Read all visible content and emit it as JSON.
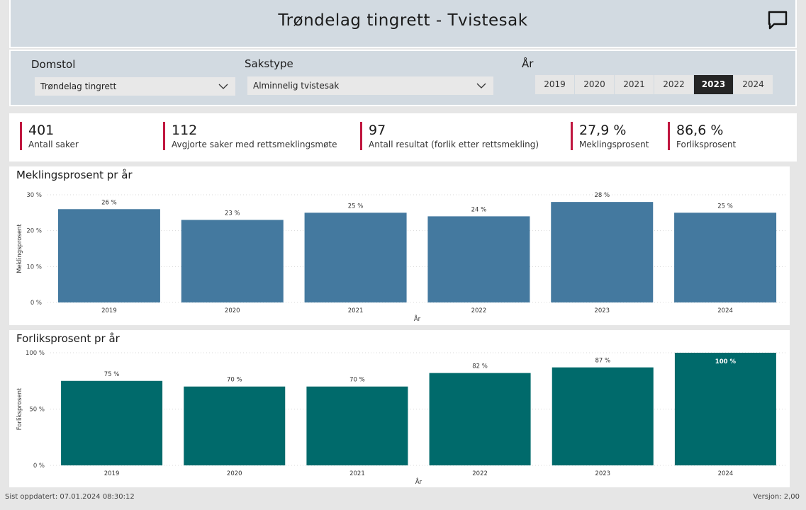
{
  "header": {
    "title": "Trøndelag tingrett - Tvistesak"
  },
  "filters": {
    "court_label": "Domstol",
    "court_value": "Trøndelag tingrett",
    "casetype_label": "Sakstype",
    "casetype_value": "Alminnelig tvistesak",
    "year_label": "År",
    "years": [
      "2019",
      "2020",
      "2021",
      "2022",
      "2023",
      "2024"
    ],
    "selected_year": "2023"
  },
  "kpis": [
    {
      "value": "401",
      "label": "Antall saker"
    },
    {
      "value": "112",
      "label": "Avgjorte saker med rettsmeklingsmøte"
    },
    {
      "value": "97",
      "label": "Antall resultat (forlik etter rettsmekling)"
    },
    {
      "value": "27,9 %",
      "label": "Meklingsprosent"
    },
    {
      "value": "86,6 %",
      "label": "Forliksprosent"
    }
  ],
  "colors": {
    "accent": "#c0163f",
    "chart1": "#44799f",
    "chart2": "#006a6b",
    "selected_year_bg": "#252525"
  },
  "chart_data": [
    {
      "type": "bar",
      "title": "Meklingsprosent pr år",
      "xlabel": "År",
      "ylabel": "Meklingsprosent",
      "categories": [
        "2019",
        "2020",
        "2021",
        "2022",
        "2023",
        "2024"
      ],
      "values": [
        26,
        23,
        25,
        24,
        28,
        25
      ],
      "data_labels": [
        "26 %",
        "23 %",
        "25 %",
        "24 %",
        "28 %",
        "25 %"
      ],
      "yticks": [
        "0 %",
        "10 %",
        "20 %",
        "30 %"
      ],
      "ylim": [
        0,
        30
      ],
      "color": "#44799f"
    },
    {
      "type": "bar",
      "title": "Forliksprosent pr år",
      "xlabel": "År",
      "ylabel": "Forliksprosent",
      "categories": [
        "2019",
        "2020",
        "2021",
        "2022",
        "2023",
        "2024"
      ],
      "values": [
        75,
        70,
        70,
        82,
        87,
        100
      ],
      "data_labels": [
        "75 %",
        "70 %",
        "70 %",
        "82 %",
        "87 %",
        "100 %"
      ],
      "yticks": [
        "0 %",
        "50 %",
        "100 %"
      ],
      "ylim": [
        0,
        100
      ],
      "color": "#006a6b"
    }
  ],
  "footer": {
    "updated": "Sist oppdatert: 07.01.2024 08:30:12",
    "version": "Versjon: 2,00"
  }
}
